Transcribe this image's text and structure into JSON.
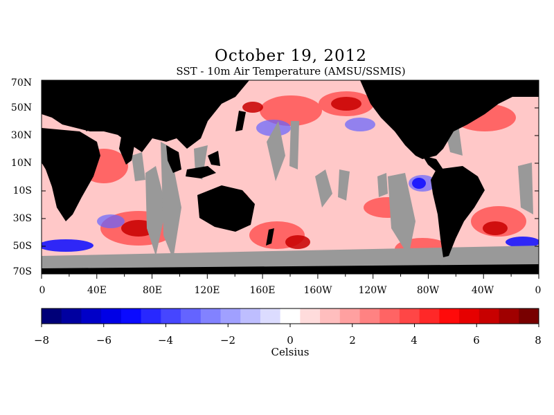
{
  "title": "October 19, 2012",
  "subtitle": "SST - 10m Air Temperature (AMSU/SSMIS)",
  "lat_labels": [
    "70N",
    "50N",
    "30N",
    "10N",
    "10S",
    "30S",
    "50S",
    "70S"
  ],
  "lon_labels": [
    "0",
    "40E",
    "80E",
    "120E",
    "160E",
    "160W",
    "120W",
    "80W",
    "40W",
    "0"
  ],
  "colorbar": {
    "unit": "Celsius",
    "range": [
      -8,
      8
    ],
    "tick_labels": [
      "−8",
      "−6",
      "−4",
      "−2",
      "0",
      "2",
      "4",
      "6",
      "8"
    ],
    "colors": [
      "#000078",
      "#0000a0",
      "#0000c8",
      "#0000e6",
      "#0a0aff",
      "#2828ff",
      "#4646ff",
      "#6464ff",
      "#8282ff",
      "#a0a0ff",
      "#bebeff",
      "#dcdcff",
      "#ffffff",
      "#ffdcdc",
      "#ffbebe",
      "#ffa0a0",
      "#ff8282",
      "#ff6464",
      "#ff4646",
      "#ff2828",
      "#ff0a0a",
      "#e60000",
      "#c80000",
      "#a00000",
      "#780000"
    ]
  },
  "map": {
    "land_color": "#000000",
    "missing_color": "#999999",
    "background_ocean": "#ffc8c8"
  }
}
